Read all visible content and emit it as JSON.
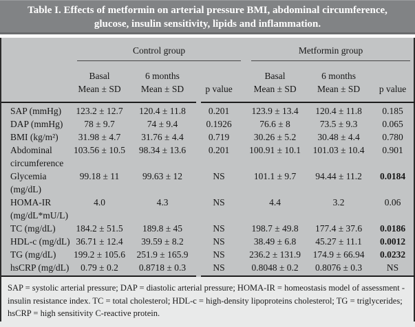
{
  "title": {
    "line1": "Table I. Effects of metformin on arterial pressure BMI, abdominal circumference,",
    "line2": "glucose, insulin sensitivity, lipids and inflammation."
  },
  "table": {
    "groups": [
      {
        "label": "Control group"
      },
      {
        "label": "Metformin group"
      }
    ],
    "subheaders": {
      "basal": "Basal",
      "six_months": "6 months",
      "mean_sd": "Mean ± SD",
      "p_value": "p value"
    },
    "rows": [
      {
        "label_lines": [
          "SAP (mmHg)"
        ],
        "cells": [
          "123.2 ± 12.7",
          "120.4 ± 11.8",
          "0.201",
          "123.9 ± 13.4",
          "120.4 ± 11.8",
          "0.185"
        ],
        "bold_metformin_p": false
      },
      {
        "label_lines": [
          "DAP (mmHg)"
        ],
        "cells": [
          "78 ± 9.7",
          "74 ± 9.4",
          "0.1926",
          "76.6 ± 8",
          "73.5 ± 9.3",
          "0.065"
        ],
        "bold_metformin_p": false
      },
      {
        "label_lines": [
          "BMI (kg/m²)"
        ],
        "cells": [
          "31.98 ± 4.7",
          "31.76 ± 4.4",
          "0.719",
          "30.26 ± 5.2",
          "30.48 ± 4.4",
          "0.780"
        ],
        "bold_metformin_p": false
      },
      {
        "label_lines": [
          "Abdominal",
          "circumference"
        ],
        "cells": [
          "103.56 ± 10.5",
          "98.34 ± 13.6",
          "0.201",
          "100.91 ± 10.1",
          "101.03 ± 10.4",
          "0.901"
        ],
        "bold_metformin_p": false
      },
      {
        "label_lines": [
          "Glycemia",
          "(mg/dL)"
        ],
        "cells": [
          "99.18 ± 11",
          "99.63 ± 12",
          "NS",
          "101.1 ± 9.7",
          "94.44 ± 11.2",
          "0.0184"
        ],
        "bold_metformin_p": true
      },
      {
        "label_lines": [
          "HOMA-IR",
          "(mg/dL*mU/L)"
        ],
        "cells": [
          "4.0",
          "4.3",
          "NS",
          "4.4",
          "3.2",
          "0.06"
        ],
        "bold_metformin_p": false
      },
      {
        "label_lines": [
          "TC (mg/dL)"
        ],
        "cells": [
          "184.2 ± 51.5",
          "189.8 ± 45",
          "NS",
          "198.7 ± 49.8",
          "177.4 ± 37.6",
          "0.0186"
        ],
        "bold_metformin_p": true
      },
      {
        "label_lines": [
          "HDL-c (mg/dL)"
        ],
        "cells": [
          "36.71 ± 12.4",
          "39.59 ± 8.2",
          "NS",
          "38.49 ± 6.8",
          "45.27 ± 11.1",
          "0.0012"
        ],
        "bold_metformin_p": true
      },
      {
        "label_lines": [
          "TG (mg/dL)"
        ],
        "cells": [
          "199.2 ± 105.6",
          "251.9 ± 165.9",
          "NS",
          "236.2 ± 131.9",
          "174.9 ± 66.94",
          "0.0232"
        ],
        "bold_metformin_p": true
      },
      {
        "label_lines": [
          "hsCRP (mg/dL)"
        ],
        "cells": [
          "0.79 ± 0.2",
          "0.8718 ± 0.3",
          "NS",
          "0.8048 ± 0.2",
          "0.8076 ± 0.3",
          "NS"
        ],
        "bold_metformin_p": false
      }
    ]
  },
  "footnote": "SAP = systolic arterial pressure; DAP = diastolic arterial pressure; HOMA-IR = homeostasis model of assessment - insulin resistance index. TC = total cholesterol; HDL-c = high-density lipoproteins cholesterol; TG = triglycerides; hsCRP = high sensitivity C-reactive protein.",
  "colors": {
    "title_bar_bg": "#818385",
    "title_bar_edge": "#6a6c6e",
    "body_bg": "#c2c4c5",
    "footnote_bg": "#e9eaea",
    "rule": "#1c1c1c",
    "title_text": "#ffffff"
  }
}
